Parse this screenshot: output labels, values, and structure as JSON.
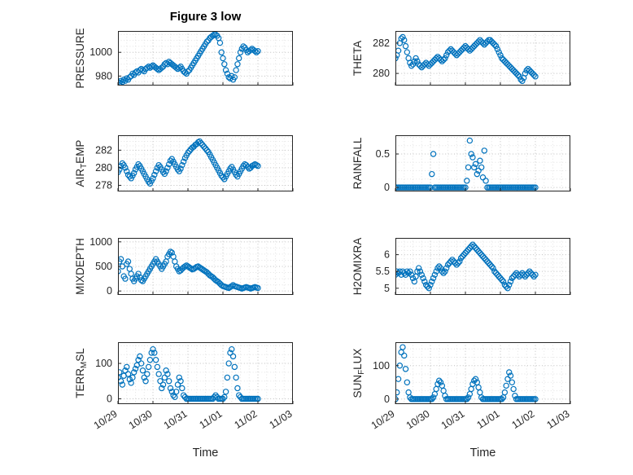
{
  "chart_data": {
    "type": "scatter",
    "title": "Figure 3 low",
    "xlabel": "Time",
    "marker": "open-circle",
    "marker_color": "#0072BD",
    "axis_color": "#262626",
    "grid_color": "#bfbfbf",
    "minor_grid_color": "#e3e3e3",
    "grid": "major+minor dotted",
    "x_unit": "hours since 10/29 00:00",
    "xlim_hours": [
      0,
      120
    ],
    "x_minor_step_hours": 6,
    "x_ticks": {
      "hours": [
        0,
        24,
        48,
        72,
        96,
        120
      ],
      "labels": [
        "10/29",
        "10/30",
        "10/31",
        "11/01",
        "11/02",
        "11/03"
      ]
    },
    "x_tick_label_rotation_deg": -33,
    "x_hours": [
      0,
      1,
      2,
      3,
      4,
      5,
      6,
      7,
      8,
      9,
      10,
      11,
      12,
      13,
      14,
      15,
      16,
      17,
      18,
      19,
      20,
      21,
      22,
      23,
      24,
      25,
      26,
      27,
      28,
      29,
      30,
      31,
      32,
      33,
      34,
      35,
      36,
      37,
      38,
      39,
      40,
      41,
      42,
      43,
      44,
      45,
      46,
      47,
      48,
      49,
      50,
      51,
      52,
      53,
      54,
      55,
      56,
      57,
      58,
      59,
      60,
      61,
      62,
      63,
      64,
      65,
      66,
      67,
      68,
      69,
      70,
      71,
      72,
      73,
      74,
      75,
      76,
      77,
      78,
      79,
      80,
      81,
      82,
      83,
      84,
      85,
      86,
      87,
      88,
      89,
      90,
      91,
      92,
      93,
      94,
      95,
      96
    ],
    "series": [
      {
        "name": "PRESSURE",
        "ylabel": "PRESSURE",
        "ylabel_parts": [
          {
            "t": "PRESSURE"
          }
        ],
        "yticks": [
          980,
          1000
        ],
        "ylim": [
          972,
          1018
        ],
        "values": [
          975,
          974,
          976,
          975,
          977,
          976,
          978,
          977,
          979,
          980,
          982,
          981,
          983,
          984,
          983,
          985,
          986,
          985,
          984,
          986,
          987,
          988,
          987,
          988,
          989,
          988,
          987,
          986,
          985,
          986,
          987,
          988,
          990,
          991,
          990,
          992,
          991,
          990,
          989,
          988,
          987,
          986,
          987,
          988,
          986,
          984,
          983,
          982,
          984,
          985,
          987,
          989,
          991,
          993,
          995,
          997,
          999,
          1001,
          1003,
          1005,
          1007,
          1009,
          1010,
          1012,
          1013,
          1014,
          1015,
          1015,
          1014,
          1012,
          1008,
          1000,
          995,
          990,
          985,
          982,
          979,
          978,
          980,
          977,
          979,
          985,
          990,
          995,
          1000,
          1003,
          1005,
          1004,
          1002,
          1000,
          1001,
          1002,
          1003,
          1002,
          1001,
          1000,
          1001
        ]
      },
      {
        "name": "THETA",
        "ylabel": "THETA",
        "ylabel_parts": [
          {
            "t": "THETA"
          }
        ],
        "yticks": [
          280,
          282
        ],
        "ylim": [
          279.2,
          282.8
        ],
        "values": [
          281.0,
          281.2,
          281.5,
          282.0,
          282.3,
          282.4,
          282.2,
          281.8,
          281.4,
          281.0,
          280.7,
          280.5,
          280.6,
          280.8,
          281.0,
          280.8,
          280.6,
          280.5,
          280.4,
          280.5,
          280.6,
          280.7,
          280.6,
          280.5,
          280.6,
          280.7,
          280.8,
          280.9,
          281.0,
          281.1,
          281.0,
          280.9,
          280.8,
          280.9,
          281.0,
          281.2,
          281.4,
          281.5,
          281.6,
          281.5,
          281.4,
          281.3,
          281.2,
          281.3,
          281.4,
          281.5,
          281.6,
          281.7,
          281.8,
          281.7,
          281.6,
          281.5,
          281.6,
          281.7,
          281.8,
          281.9,
          282.0,
          282.1,
          282.2,
          282.1,
          282.0,
          281.9,
          282.0,
          282.1,
          282.2,
          282.2,
          282.1,
          282.0,
          281.9,
          281.8,
          281.6,
          281.4,
          281.2,
          281.0,
          280.9,
          280.8,
          280.7,
          280.6,
          280.5,
          280.4,
          280.3,
          280.2,
          280.1,
          280.0,
          279.9,
          279.8,
          279.6,
          279.5,
          279.7,
          280.0,
          280.2,
          280.3,
          280.2,
          280.1,
          280.0,
          279.9,
          279.8
        ]
      },
      {
        "name": "AIR_TEMP",
        "ylabel": "AIR_TEMP",
        "ylabel_parts": [
          {
            "t": "AIR"
          },
          {
            "t": "T",
            "sub": true
          },
          {
            "t": "EMP"
          }
        ],
        "yticks": [
          278,
          280,
          282
        ],
        "ylim": [
          277.3,
          283.7
        ],
        "values": [
          279.5,
          279.8,
          280.2,
          280.5,
          280.3,
          280.0,
          279.6,
          279.2,
          279.0,
          278.8,
          279.1,
          279.4,
          279.8,
          280.1,
          280.4,
          280.2,
          279.9,
          279.6,
          279.3,
          279.0,
          278.7,
          278.4,
          278.2,
          278.5,
          278.8,
          279.2,
          279.6,
          280.0,
          280.3,
          280.1,
          279.8,
          279.5,
          279.3,
          279.6,
          280.0,
          280.4,
          280.8,
          281.0,
          280.7,
          280.4,
          280.1,
          279.8,
          279.6,
          279.9,
          280.3,
          280.7,
          281.1,
          281.4,
          281.7,
          281.9,
          282.1,
          282.3,
          282.4,
          282.6,
          282.7,
          282.9,
          283.0,
          282.8,
          282.6,
          282.4,
          282.2,
          282.0,
          281.8,
          281.5,
          281.2,
          280.9,
          280.6,
          280.3,
          280.0,
          279.7,
          279.4,
          279.1,
          278.9,
          278.7,
          279.0,
          279.3,
          279.6,
          279.9,
          280.1,
          279.8,
          279.5,
          279.2,
          279.0,
          279.3,
          279.6,
          279.9,
          280.2,
          280.4,
          280.3,
          280.1,
          279.9,
          280.0,
          280.2,
          280.3,
          280.4,
          280.3,
          280.2
        ]
      },
      {
        "name": "RAINFALL",
        "ylabel": "RAINFALL",
        "ylabel_parts": [
          {
            "t": "RAINFALL"
          }
        ],
        "yticks": [
          0,
          0.5
        ],
        "ylim": [
          -0.06,
          0.78
        ],
        "values": [
          0,
          0,
          0,
          0,
          0,
          0,
          0,
          0,
          0,
          0,
          0,
          0,
          0,
          0,
          0,
          0,
          0,
          0,
          0,
          0,
          0,
          0,
          0,
          0,
          0,
          0.2,
          0.5,
          0,
          0,
          0,
          0,
          0,
          0,
          0,
          0,
          0,
          0,
          0,
          0,
          0,
          0,
          0,
          0,
          0,
          0,
          0,
          0,
          0,
          0,
          0.1,
          0.3,
          0.7,
          0.5,
          0.45,
          0.3,
          0.35,
          0.2,
          0.25,
          0.4,
          0.3,
          0.15,
          0.55,
          0.1,
          0,
          0,
          0,
          0,
          0,
          0,
          0,
          0,
          0,
          0,
          0,
          0,
          0,
          0,
          0,
          0,
          0,
          0,
          0,
          0,
          0,
          0,
          0,
          0,
          0,
          0,
          0,
          0,
          0,
          0,
          0,
          0,
          0,
          0
        ]
      },
      {
        "name": "MIXDEPTH",
        "ylabel": "MIXDEPTH",
        "ylabel_parts": [
          {
            "t": "MIXDEPTH"
          }
        ],
        "yticks": [
          0,
          500,
          1000
        ],
        "ylim": [
          -80,
          1080
        ],
        "values": [
          400,
          600,
          650,
          500,
          300,
          250,
          550,
          600,
          450,
          350,
          250,
          200,
          250,
          300,
          350,
          280,
          220,
          200,
          250,
          300,
          350,
          400,
          450,
          500,
          550,
          600,
          650,
          600,
          550,
          500,
          450,
          500,
          550,
          600,
          700,
          750,
          800,
          780,
          700,
          600,
          500,
          450,
          400,
          420,
          450,
          480,
          500,
          520,
          500,
          480,
          460,
          440,
          450,
          470,
          490,
          500,
          480,
          460,
          440,
          420,
          400,
          380,
          350,
          320,
          300,
          280,
          250,
          220,
          200,
          180,
          150,
          120,
          100,
          90,
          80,
          70,
          60,
          80,
          100,
          120,
          100,
          90,
          80,
          70,
          60,
          50,
          60,
          70,
          80,
          70,
          60,
          50,
          60,
          70,
          80,
          70,
          60
        ]
      },
      {
        "name": "H2OMIXRA",
        "ylabel": "H2OMIXRA",
        "ylabel_parts": [
          {
            "t": "H2OMIXRA"
          }
        ],
        "yticks": [
          5,
          5.5,
          6
        ],
        "ylim": [
          4.8,
          6.5
        ],
        "values": [
          5.4,
          5.5,
          5.45,
          5.5,
          5.4,
          5.5,
          5.45,
          5.4,
          5.5,
          5.45,
          5.5,
          5.4,
          5.3,
          5.2,
          5.35,
          5.5,
          5.6,
          5.5,
          5.4,
          5.3,
          5.2,
          5.1,
          5.05,
          5.0,
          5.1,
          5.2,
          5.3,
          5.4,
          5.5,
          5.6,
          5.65,
          5.6,
          5.5,
          5.45,
          5.5,
          5.6,
          5.7,
          5.75,
          5.8,
          5.85,
          5.8,
          5.75,
          5.7,
          5.75,
          5.8,
          5.9,
          5.95,
          6.0,
          6.05,
          6.1,
          6.15,
          6.2,
          6.25,
          6.3,
          6.25,
          6.2,
          6.15,
          6.1,
          6.05,
          6.0,
          5.95,
          5.9,
          5.85,
          5.8,
          5.75,
          5.7,
          5.65,
          5.6,
          5.5,
          5.45,
          5.4,
          5.35,
          5.3,
          5.25,
          5.2,
          5.1,
          5.05,
          5.0,
          5.1,
          5.2,
          5.3,
          5.35,
          5.4,
          5.45,
          5.4,
          5.35,
          5.4,
          5.45,
          5.4,
          5.35,
          5.4,
          5.45,
          5.5,
          5.45,
          5.4,
          5.35,
          5.4
        ]
      },
      {
        "name": "TERR_MSL",
        "ylabel": "TERR_MSL",
        "ylabel_parts": [
          {
            "t": "TERR"
          },
          {
            "t": "M",
            "sub": true
          },
          {
            "t": "SL"
          }
        ],
        "yticks": [
          0,
          100
        ],
        "ylim": [
          -15,
          160
        ],
        "values": [
          60,
          75,
          50,
          40,
          65,
          80,
          90,
          70,
          55,
          45,
          60,
          75,
          85,
          95,
          110,
          120,
          100,
          80,
          60,
          50,
          70,
          90,
          110,
          130,
          140,
          130,
          110,
          90,
          70,
          50,
          30,
          40,
          60,
          80,
          70,
          50,
          30,
          20,
          10,
          5,
          20,
          40,
          60,
          50,
          30,
          10,
          5,
          0,
          0,
          0,
          0,
          0,
          0,
          0,
          0,
          0,
          0,
          0,
          0,
          0,
          0,
          0,
          0,
          0,
          0,
          0,
          5,
          10,
          5,
          0,
          0,
          0,
          0,
          5,
          20,
          60,
          100,
          130,
          140,
          120,
          90,
          60,
          30,
          10,
          5,
          0,
          0,
          0,
          0,
          0,
          0,
          0,
          0,
          0,
          0,
          0,
          0
        ]
      },
      {
        "name": "SUN_FLUX",
        "ylabel": "SUN_FLUX",
        "ylabel_parts": [
          {
            "t": "SUN"
          },
          {
            "t": "F",
            "sub": true
          },
          {
            "t": "LUX"
          }
        ],
        "yticks": [
          0,
          100
        ],
        "ylim": [
          -15,
          170
        ],
        "values": [
          0,
          20,
          60,
          100,
          140,
          155,
          130,
          90,
          50,
          20,
          5,
          0,
          0,
          0,
          0,
          0,
          0,
          0,
          0,
          0,
          0,
          0,
          0,
          0,
          0,
          0,
          5,
          15,
          30,
          45,
          55,
          50,
          40,
          25,
          10,
          0,
          0,
          0,
          0,
          0,
          0,
          0,
          0,
          0,
          0,
          0,
          0,
          0,
          0,
          0,
          5,
          15,
          30,
          45,
          55,
          60,
          50,
          35,
          20,
          5,
          0,
          0,
          0,
          0,
          0,
          0,
          0,
          0,
          0,
          0,
          0,
          0,
          0,
          0,
          5,
          20,
          40,
          60,
          80,
          70,
          50,
          30,
          10,
          0,
          0,
          0,
          0,
          0,
          0,
          0,
          0,
          0,
          0,
          0,
          0,
          0,
          0
        ]
      }
    ]
  }
}
